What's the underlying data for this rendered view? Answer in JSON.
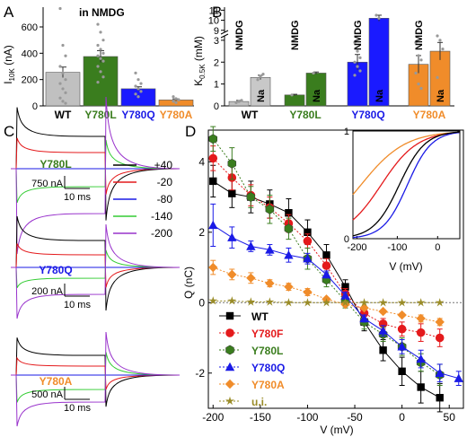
{
  "panel_letters": [
    "A",
    "B",
    "C",
    "D"
  ],
  "colors": {
    "WT": "#000000",
    "Y780F": "#e41a1c",
    "Y780L": "#3a7d1e",
    "Y780Q": "#1a1ae6",
    "Y780A": "#f08c2a",
    "ui": "#9a8c28",
    "bar_WT": "#c0c0c0",
    "bar_Y780L": "#3a7d1e",
    "bar_Y780Q": "#1a1aff",
    "bar_Y780A": "#f08c2a"
  },
  "chart_data": [
    {
      "panel": "A",
      "type": "bar",
      "annotation": "in NMDG",
      "ylabel_main": "I",
      "ylabel_sub": "10K",
      "ylabel_unit": " (nA)",
      "ylim": [
        0,
        750
      ],
      "yticks": [
        0,
        200,
        400,
        600
      ],
      "categories": [
        "WT",
        "Y780L",
        "Y780Q",
        "Y780A"
      ],
      "values": [
        255,
        375,
        130,
        45
      ],
      "errors": [
        40,
        45,
        15,
        8
      ],
      "points": [
        [
          740,
          460,
          380,
          300,
          250,
          200,
          170,
          130,
          100,
          60,
          35,
          20
        ],
        [
          620,
          560,
          500,
          460,
          430,
          400,
          380,
          360,
          340,
          300,
          260,
          220,
          180
        ],
        [
          250,
          200,
          170,
          150,
          130,
          110,
          90,
          70
        ],
        [
          70,
          55,
          45,
          35,
          25
        ]
      ]
    },
    {
      "panel": "B",
      "type": "bar",
      "ylabel_main": "K",
      "ylabel_sub": "0.5K",
      "ylabel_unit": " (mM)",
      "yticks_lower": [
        0,
        1,
        2,
        3
      ],
      "yticks_upper": [
        9,
        10,
        11
      ],
      "categories": [
        "WT",
        "Y780L",
        "Y780Q",
        "Y780A"
      ],
      "groups": [
        {
          "label": "WT",
          "NMDG": 0.2,
          "Na": 1.3,
          "NMDG_err": 0.05,
          "Na_err": 0.1,
          "NMDG_points": [
            0.15,
            0.2,
            0.25
          ],
          "Na_points": [
            1.2,
            1.35,
            1.45
          ]
        },
        {
          "label": "Y780L",
          "NMDG": 0.5,
          "Na": 1.5,
          "NMDG_err": 0.03,
          "Na_err": 0.05,
          "NMDG_points": [
            0.5
          ],
          "Na_points": [
            1.5
          ]
        },
        {
          "label": "Y780Q",
          "NMDG": 2.0,
          "Na": 10.2,
          "NMDG_err": 0.35,
          "Na_err": 0.3,
          "NMDG_points": [
            2.9,
            2.5,
            2.2,
            2.0,
            1.8,
            1.6,
            1.4
          ],
          "Na_points": [
            10.5,
            10.2
          ]
        },
        {
          "label": "Y780A",
          "NMDG": 1.9,
          "Na": 2.5,
          "NMDG_err": 0.4,
          "Na_err": 0.4,
          "NMDG_points": [
            2.9,
            2.3,
            2.1,
            1.5,
            1.0,
            0.8
          ],
          "Na_points": [
            3.2,
            3.0,
            2.6,
            1.3
          ]
        }
      ],
      "series_labels": [
        "NMDG",
        "Na"
      ]
    },
    {
      "panel": "C",
      "type": "line",
      "traces_groups": [
        "Y780L",
        "Y780Q",
        "Y780A"
      ],
      "legend": [
        "+40",
        "-20",
        "-80",
        "-140",
        "-200"
      ],
      "legend_colors": [
        "#000000",
        "#e41a1c",
        "#1a1ae6",
        "#33cc33",
        "#9933cc"
      ],
      "scalebars": [
        {
          "current": "750 nA",
          "time": "10 ms"
        },
        {
          "current": "200 nA",
          "time": "10 ms"
        },
        {
          "current": "500 nA",
          "time": "10 ms"
        }
      ]
    },
    {
      "panel": "D",
      "type": "scatter",
      "xlabel": "V (mV)",
      "ylabel": "Q (nC)",
      "xlim": [
        -205,
        65
      ],
      "ylim": [
        -3.0,
        4.9
      ],
      "xticks": [
        -200,
        -150,
        -100,
        -50,
        0,
        50
      ],
      "yticks": [
        -2,
        0,
        2,
        4
      ],
      "series": [
        {
          "name": "WT",
          "key": "WT",
          "marker": "square",
          "x": [
            -200,
            -180,
            -160,
            -140,
            -120,
            -100,
            -80,
            -60,
            -40,
            -20,
            0,
            20,
            40
          ],
          "y": [
            3.45,
            3.1,
            3.0,
            2.8,
            2.55,
            2.0,
            1.35,
            0.45,
            -0.55,
            -1.35,
            -1.95,
            -2.4,
            -2.7
          ],
          "err": [
            0.45,
            0.4,
            0.45,
            0.4,
            0.4,
            0.35,
            0.3,
            0.2,
            0.25,
            0.3,
            0.4,
            0.45,
            0.4
          ]
        },
        {
          "name": "Y780F",
          "key": "Y780F",
          "marker": "circle",
          "x": [
            -200,
            -180,
            -160,
            -140,
            -120,
            -100,
            -80,
            -60,
            -40,
            -20,
            0,
            20,
            40
          ],
          "y": [
            4.1,
            3.55,
            3.05,
            2.7,
            2.25,
            1.75,
            1.05,
            0.25,
            -0.3,
            -0.6,
            -0.75,
            -0.85,
            -1.0
          ],
          "err": [
            0.35,
            0.35,
            0.3,
            0.3,
            0.25,
            0.2,
            0.2,
            0.15,
            0.15,
            0.15,
            0.2,
            0.25,
            0.25
          ]
        },
        {
          "name": "Y780L",
          "key": "Y780L",
          "marker": "hexagon",
          "x": [
            -200,
            -180,
            -160,
            -140,
            -120,
            -100,
            -80,
            -60,
            -40,
            -20,
            0,
            20,
            40
          ],
          "y": [
            4.65,
            3.95,
            3.0,
            2.65,
            2.1,
            1.25,
            0.65,
            0.05,
            -0.55,
            -0.9,
            -1.25,
            -1.7,
            -2.05
          ],
          "err": [
            0.35,
            0.45,
            0.3,
            0.4,
            0.3,
            0.3,
            0.2,
            0.2,
            0.2,
            0.2,
            0.25,
            0.25,
            0.3
          ]
        },
        {
          "name": "Y780Q",
          "key": "Y780Q",
          "marker": "triangle",
          "x": [
            -200,
            -180,
            -160,
            -140,
            -120,
            -100,
            -80,
            -60,
            -40,
            -20,
            0,
            20,
            40,
            60
          ],
          "y": [
            2.2,
            1.85,
            1.6,
            1.5,
            1.35,
            1.25,
            0.8,
            0.2,
            -0.45,
            -0.8,
            -1.25,
            -1.6,
            -2.0,
            -2.15
          ],
          "err": [
            0.6,
            0.3,
            0.15,
            0.15,
            0.2,
            0.15,
            0.1,
            0.1,
            0.1,
            0.15,
            0.2,
            0.25,
            0.25,
            0.2
          ]
        },
        {
          "name": "Y780A",
          "key": "Y780A",
          "marker": "diamond",
          "x": [
            -200,
            -180,
            -160,
            -140,
            -120,
            -100,
            -80,
            -60,
            -40,
            -20,
            0,
            20,
            40
          ],
          "y": [
            1.0,
            0.8,
            0.7,
            0.55,
            0.45,
            0.3,
            0.1,
            -0.05,
            -0.15,
            -0.25,
            -0.35,
            -0.45,
            -0.55
          ],
          "err": [
            0.2,
            0.15,
            0.15,
            0.1,
            0.1,
            0.1,
            0.05,
            0.05,
            0.05,
            0.05,
            0.05,
            0.1,
            0.1
          ]
        },
        {
          "name": "u.i.",
          "key": "ui",
          "marker": "star",
          "x": [
            -200,
            -180,
            -160,
            -140,
            -120,
            -100,
            -80,
            -60,
            -40,
            -20,
            0,
            20,
            40
          ],
          "y": [
            0.05,
            0.05,
            0.02,
            0.02,
            0.0,
            0.0,
            0.0,
            0.0,
            0.0,
            0.0,
            0.0,
            0.0,
            0.0
          ],
          "err": [
            0,
            0,
            0,
            0,
            0,
            0,
            0,
            0,
            0,
            0,
            0,
            0,
            0
          ]
        }
      ],
      "inset": {
        "xlabel": "V (mV)",
        "xlim": [
          -210,
          55
        ],
        "ylim": [
          0,
          1
        ],
        "xticks": [
          -200,
          -100,
          0
        ],
        "yticks": [
          0,
          1
        ],
        "curves": [
          {
            "key": "Y780A",
            "vhalf": -190,
            "k": 55
          },
          {
            "key": "Y780F",
            "vhalf": -140,
            "k": 45
          },
          {
            "key": "Y780Q",
            "vhalf": -75,
            "k": 30
          },
          {
            "key": "WT",
            "vhalf": -95,
            "k": 32
          }
        ]
      }
    }
  ]
}
